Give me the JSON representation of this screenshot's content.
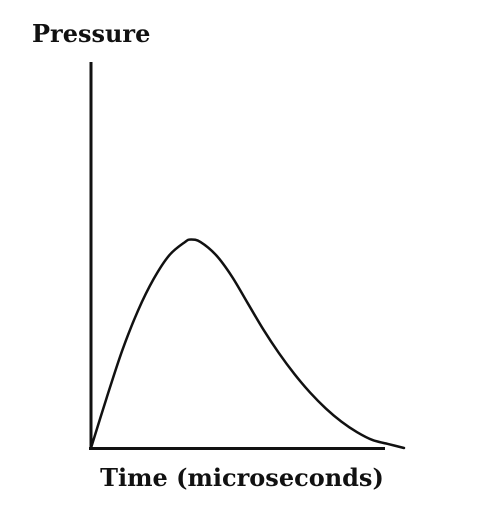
{
  "chart_data": {
    "type": "line",
    "title": "",
    "xlabel": "Time (microseconds)",
    "ylabel": "Pressure",
    "xticks": [],
    "yticks": [],
    "grid": false,
    "legend": "none",
    "xlim": [
      0,
      10
    ],
    "ylim": [
      0,
      10
    ],
    "series": [
      {
        "x": [
          0,
          0.5,
          1,
          1.5,
          2,
          2.5,
          3,
          3.2,
          3.5,
          4,
          4.5,
          5,
          5.5,
          6,
          6.5,
          7,
          7.5,
          8,
          8.5,
          9,
          9.5,
          10
        ],
        "y": [
          0,
          1.9,
          3.7,
          5.2,
          6.4,
          7.3,
          7.8,
          7.9,
          7.8,
          7.3,
          6.5,
          5.5,
          4.5,
          3.6,
          2.8,
          2.1,
          1.5,
          1.0,
          0.6,
          0.3,
          0.15,
          0.0
        ],
        "color": "#111111"
      }
    ]
  }
}
